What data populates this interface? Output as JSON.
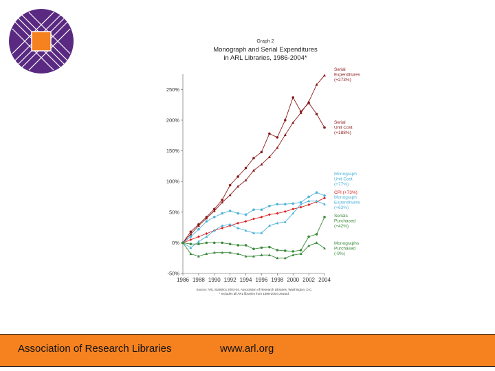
{
  "footer": {
    "org": "Association of Research Libraries",
    "url": "www.arl.org"
  },
  "chart_data": {
    "type": "line",
    "title_small": "Graph 2",
    "title_lines": [
      "Monograph and Serial Expenditures",
      "in ARL Libraries, 1986-2004*"
    ],
    "ylim": [
      -50,
      275
    ],
    "yticks": [
      -50,
      0,
      50,
      100,
      150,
      200,
      250
    ],
    "ytick_labels": [
      "-50%",
      "0%",
      "50%",
      "100%",
      "150%",
      "200%",
      "250%"
    ],
    "x": [
      1986,
      1987,
      1988,
      1989,
      1990,
      1991,
      1992,
      1993,
      1994,
      1995,
      1996,
      1997,
      1998,
      1999,
      2000,
      2001,
      2002,
      2003,
      2004
    ],
    "xtick_labels": [
      "1986",
      "1988",
      "1990",
      "1992",
      "1994",
      "1996",
      "1998",
      "2000",
      "2002",
      "2004"
    ],
    "grid": false,
    "series": [
      {
        "name": "Serial Expenditures (+273%)",
        "label_lines": [
          "Serial",
          "Expenditures",
          "(+273%)"
        ],
        "color": "#8b1a1a",
        "marker": "triangle",
        "values": [
          0,
          14,
          28,
          40,
          52,
          66,
          78,
          92,
          102,
          118,
          128,
          140,
          155,
          176,
          196,
          212,
          230,
          258,
          273
        ]
      },
      {
        "name": "Serial Unit Cost (+188%)",
        "label_lines": [
          "Serial",
          "Unit Cost",
          "(+188%)"
        ],
        "color": "#8b1a1a",
        "marker": "circle",
        "values": [
          0,
          18,
          30,
          42,
          55,
          70,
          94,
          108,
          122,
          138,
          148,
          178,
          172,
          200,
          237,
          214,
          228,
          210,
          188
        ]
      },
      {
        "name": "Monograph Unit Cost (+77%)",
        "label_lines": [
          "Monograph",
          "Unit Cost",
          "(+77%)"
        ],
        "color": "#4fb3d9",
        "marker": "circle",
        "values": [
          0,
          10,
          22,
          35,
          42,
          48,
          52,
          48,
          46,
          54,
          54,
          60,
          63,
          63,
          64,
          66,
          75,
          82,
          77
        ]
      },
      {
        "name": "CPI (+73%)",
        "label_lines": [
          "CPI (+73%)"
        ],
        "color": "#d92020",
        "marker": "diamond",
        "values": [
          0,
          5,
          10,
          15,
          20,
          24,
          28,
          32,
          35,
          39,
          42,
          46,
          48,
          51,
          55,
          58,
          62,
          67,
          73
        ]
      },
      {
        "name": "Monograph Expenditures (+63%)",
        "label_lines": [
          "Monograph",
          "Expenditures",
          "(+63%)"
        ],
        "color": "#4fb3d9",
        "marker": "triangle",
        "values": [
          0,
          -8,
          2,
          10,
          20,
          28,
          30,
          24,
          20,
          16,
          16,
          28,
          32,
          34,
          48,
          63,
          68,
          68,
          63
        ]
      },
      {
        "name": "Serials Purchased (+42%)",
        "label_lines": [
          "Serials",
          "Purchased",
          "(+42%)"
        ],
        "color": "#3a8a3a",
        "marker": "circle",
        "values": [
          0,
          -2,
          -2,
          0,
          0,
          0,
          -2,
          -4,
          -4,
          -10,
          -8,
          -7,
          -12,
          -13,
          -14,
          -12,
          10,
          14,
          42
        ]
      },
      {
        "name": "Monographs Purchased (-9%)",
        "label_lines": [
          "Monographs",
          "Purchased",
          "(-9%)"
        ],
        "color": "#3a8a3a",
        "marker": "triangle",
        "values": [
          0,
          -18,
          -22,
          -18,
          -16,
          -16,
          -16,
          -18,
          -22,
          -22,
          -20,
          -20,
          -25,
          -25,
          -20,
          -18,
          -5,
          0,
          -9
        ]
      }
    ],
    "source_lines": [
      "Source: ARL Statistics 2003-04. Association of Research Libraries, Washington, D.C.",
      "* Includes all ARL libraries from 1986-2004 onward."
    ]
  }
}
